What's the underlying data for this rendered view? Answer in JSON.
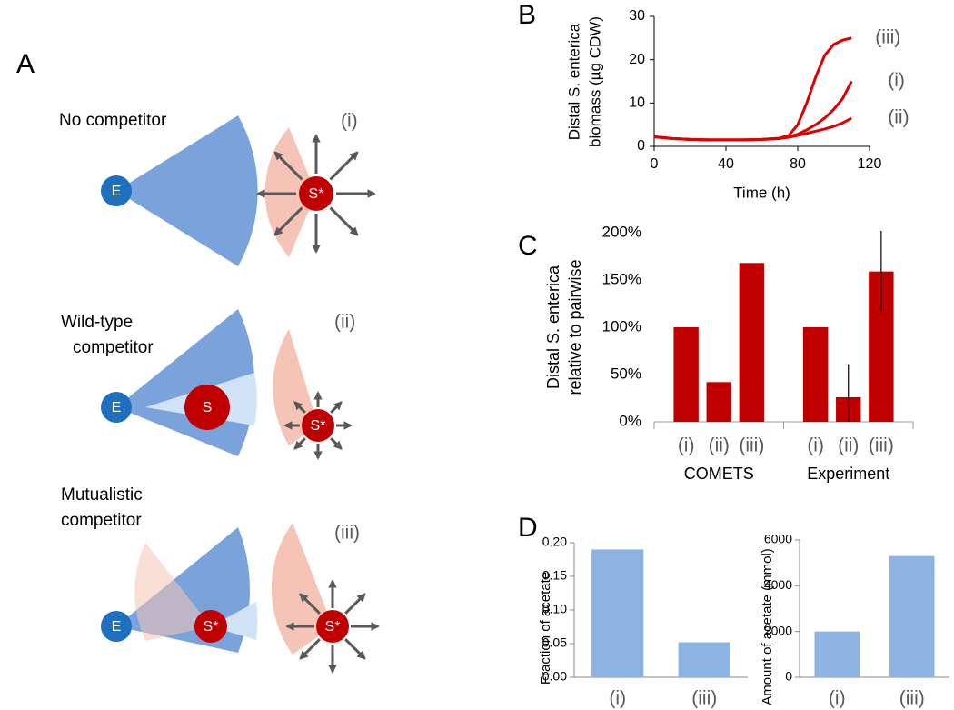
{
  "panels": [
    "A",
    "B",
    "C",
    "D"
  ],
  "diagram": {
    "rows": [
      {
        "label_lines": [
          "No competitor"
        ],
        "tag": "(i)",
        "cells": [
          "E",
          "S*"
        ]
      },
      {
        "label_lines": [
          "Wild-type",
          "competitor"
        ],
        "tag": "(ii)",
        "cells": [
          "E",
          "S",
          "S*"
        ]
      },
      {
        "label_lines": [
          "Mutualistic",
          "competitor"
        ],
        "tag": "(iii)",
        "cells": [
          "E",
          "S*",
          "S*"
        ]
      }
    ]
  },
  "chart_data": [
    {
      "type": "line",
      "xlabel": "Time (h)",
      "ylabel_lines": [
        "Distal S. enterica",
        "biomass (µg CDW)"
      ],
      "x": [
        0,
        10,
        20,
        30,
        40,
        50,
        60,
        70,
        75,
        80,
        85,
        90,
        95,
        100,
        105,
        110
      ],
      "series": [
        {
          "name": "(iii)",
          "color": "#e00000",
          "values": [
            2.2,
            1.8,
            1.6,
            1.5,
            1.5,
            1.5,
            1.6,
            1.9,
            2.5,
            5,
            10,
            16,
            21,
            23.5,
            24.5,
            25
          ]
        },
        {
          "name": "(i)",
          "color": "#e00000",
          "values": [
            2.2,
            1.8,
            1.6,
            1.5,
            1.5,
            1.5,
            1.6,
            1.8,
            2.2,
            2.8,
            3.8,
            5,
            6.5,
            8.5,
            11,
            15
          ]
        },
        {
          "name": "(ii)",
          "color": "#e00000",
          "values": [
            2.2,
            1.8,
            1.6,
            1.5,
            1.5,
            1.5,
            1.6,
            1.8,
            2.1,
            2.5,
            3,
            3.5,
            4,
            4.6,
            5.4,
            6.5
          ]
        }
      ],
      "xlim": [
        0,
        120
      ],
      "xticks": [
        0,
        40,
        80,
        120
      ],
      "ylim": [
        0,
        30
      ],
      "yticks": [
        0,
        10,
        20,
        30
      ]
    },
    {
      "type": "grouped_bar",
      "ylabel_lines": [
        "Distal S. enterica",
        "relative to pairwise"
      ],
      "groups": [
        "COMETS",
        "Experiment"
      ],
      "categories": [
        "(i)",
        "(ii)",
        "(iii)",
        "(i)",
        "(ii)",
        "(iii)"
      ],
      "values": [
        100,
        42,
        168,
        100,
        26,
        159
      ],
      "errors": [
        null,
        null,
        null,
        null,
        35,
        43
      ],
      "color": "#c00000",
      "ylim": [
        0,
        200
      ],
      "yticks": [
        {
          "value": 0,
          "label": "0%"
        },
        {
          "value": 50,
          "label": "50%"
        },
        {
          "value": 100,
          "label": "100%"
        },
        {
          "value": 150,
          "label": "150%"
        },
        {
          "value": 200,
          "label": "200%"
        }
      ]
    },
    {
      "type": "bar",
      "ylabel": "Fraction of acetate",
      "categories": [
        "(i)",
        "(iii)"
      ],
      "values": [
        0.19,
        0.052
      ],
      "color": "#8db3e2",
      "ylim": [
        0,
        0.2
      ],
      "yticks": [
        {
          "value": 0,
          "label": "0.00"
        },
        {
          "value": 0.05,
          "label": "0.05"
        },
        {
          "value": 0.1,
          "label": "0.10"
        },
        {
          "value": 0.15,
          "label": "0.15"
        },
        {
          "value": 0.2,
          "label": "0.20"
        }
      ]
    },
    {
      "type": "bar",
      "ylabel": "Amount of acetate (mmol)",
      "categories": [
        "(i)",
        "(iii)"
      ],
      "values": [
        2000,
        5300
      ],
      "color": "#8db3e2",
      "ylim": [
        0,
        6000
      ],
      "yticks": [
        0,
        2000,
        4000,
        6000
      ]
    }
  ]
}
